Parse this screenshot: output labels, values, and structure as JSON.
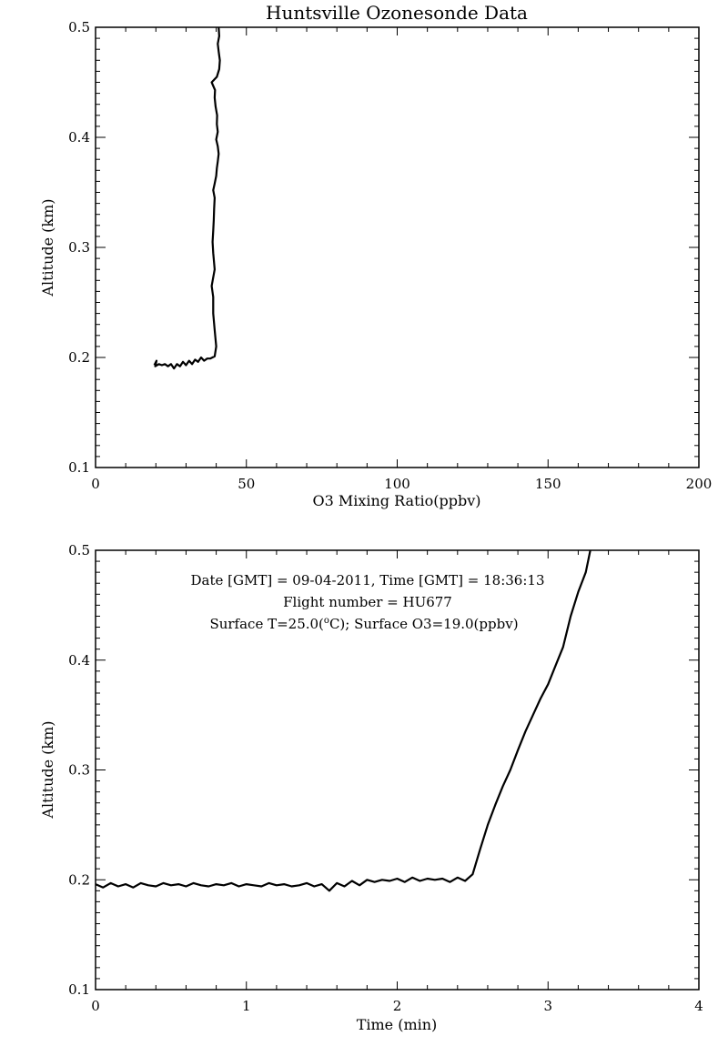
{
  "chart_data": [
    {
      "type": "line",
      "title": "Huntsville Ozonesonde Data",
      "xlabel": "O3 Mixing Ratio(ppbv)",
      "ylabel": "Altitude (km)",
      "xlim": [
        0,
        200
      ],
      "ylim": [
        0.1,
        0.5
      ],
      "xticks": [
        "0",
        "50",
        "100",
        "150",
        "200"
      ],
      "yticks": [
        "0.1",
        "0.2",
        "0.3",
        "0.4",
        "0.5"
      ],
      "grid": false,
      "series": [
        {
          "x": [
            19.5,
            20.2,
            19.8,
            21.0,
            22.0,
            23.0,
            24.0,
            25.0,
            26.0,
            27.0,
            28.0,
            29.0,
            30.0,
            31.0,
            32.0,
            33.0,
            34.0,
            35.0,
            36.0,
            37.0,
            38.0,
            39.5,
            40.0,
            39.5,
            39.0,
            39.0,
            38.5,
            39.5,
            39.0,
            38.8,
            39.0,
            39.2,
            39.3,
            39.5,
            39.0,
            39.5,
            40.0,
            40.2,
            40.5,
            40.8,
            40.5,
            40.0,
            40.5,
            40.2,
            40.3,
            39.8,
            39.5,
            39.6,
            38.5,
            40.2,
            41.0,
            41.2,
            40.8,
            40.5,
            41.0,
            40.8
          ],
          "y": [
            0.193,
            0.197,
            0.192,
            0.194,
            0.193,
            0.194,
            0.192,
            0.194,
            0.19,
            0.194,
            0.192,
            0.196,
            0.193,
            0.197,
            0.194,
            0.198,
            0.196,
            0.2,
            0.197,
            0.199,
            0.199,
            0.201,
            0.21,
            0.225,
            0.24,
            0.255,
            0.265,
            0.28,
            0.295,
            0.305,
            0.315,
            0.325,
            0.335,
            0.345,
            0.352,
            0.358,
            0.365,
            0.372,
            0.378,
            0.385,
            0.392,
            0.398,
            0.405,
            0.412,
            0.42,
            0.428,
            0.436,
            0.443,
            0.45,
            0.455,
            0.462,
            0.47,
            0.478,
            0.485,
            0.492,
            0.5
          ]
        }
      ]
    },
    {
      "type": "line",
      "title": "",
      "xlabel": "Time (min)",
      "ylabel": "Altitude (km)",
      "xlim": [
        0,
        4
      ],
      "ylim": [
        0.1,
        0.5
      ],
      "xticks": [
        "0",
        "1",
        "2",
        "3",
        "4"
      ],
      "yticks": [
        "0.1",
        "0.2",
        "0.3",
        "0.4",
        "0.5"
      ],
      "grid": false,
      "annotations": {
        "line1": "Date [GMT] = 09-04-2011,  Time [GMT] = 18:36:13",
        "line2": "Flight number = HU677",
        "line3_prefix": "Surface T=25.0(",
        "line3_sup": "o",
        "line3_suffix": "C); Surface O3=19.0(ppbv)"
      },
      "series": [
        {
          "x": [
            0.0,
            0.05,
            0.1,
            0.15,
            0.2,
            0.25,
            0.3,
            0.35,
            0.4,
            0.45,
            0.5,
            0.55,
            0.6,
            0.65,
            0.7,
            0.75,
            0.8,
            0.85,
            0.9,
            0.95,
            1.0,
            1.05,
            1.1,
            1.15,
            1.2,
            1.25,
            1.3,
            1.35,
            1.4,
            1.45,
            1.5,
            1.55,
            1.6,
            1.65,
            1.7,
            1.75,
            1.8,
            1.85,
            1.9,
            1.95,
            2.0,
            2.05,
            2.1,
            2.15,
            2.2,
            2.25,
            2.3,
            2.35,
            2.4,
            2.45,
            2.5,
            2.55,
            2.6,
            2.65,
            2.7,
            2.75,
            2.8,
            2.85,
            2.9,
            2.95,
            3.0,
            3.05,
            3.1,
            3.15,
            3.2,
            3.25,
            3.28
          ],
          "y": [
            0.196,
            0.193,
            0.197,
            0.194,
            0.196,
            0.193,
            0.197,
            0.195,
            0.194,
            0.197,
            0.195,
            0.196,
            0.194,
            0.197,
            0.195,
            0.194,
            0.196,
            0.195,
            0.197,
            0.194,
            0.196,
            0.195,
            0.194,
            0.197,
            0.195,
            0.196,
            0.194,
            0.195,
            0.197,
            0.194,
            0.196,
            0.19,
            0.197,
            0.194,
            0.199,
            0.195,
            0.2,
            0.198,
            0.2,
            0.199,
            0.201,
            0.198,
            0.202,
            0.199,
            0.201,
            0.2,
            0.201,
            0.198,
            0.202,
            0.199,
            0.205,
            0.228,
            0.25,
            0.268,
            0.285,
            0.3,
            0.318,
            0.335,
            0.35,
            0.365,
            0.378,
            0.395,
            0.412,
            0.44,
            0.462,
            0.48,
            0.5
          ]
        }
      ]
    }
  ]
}
